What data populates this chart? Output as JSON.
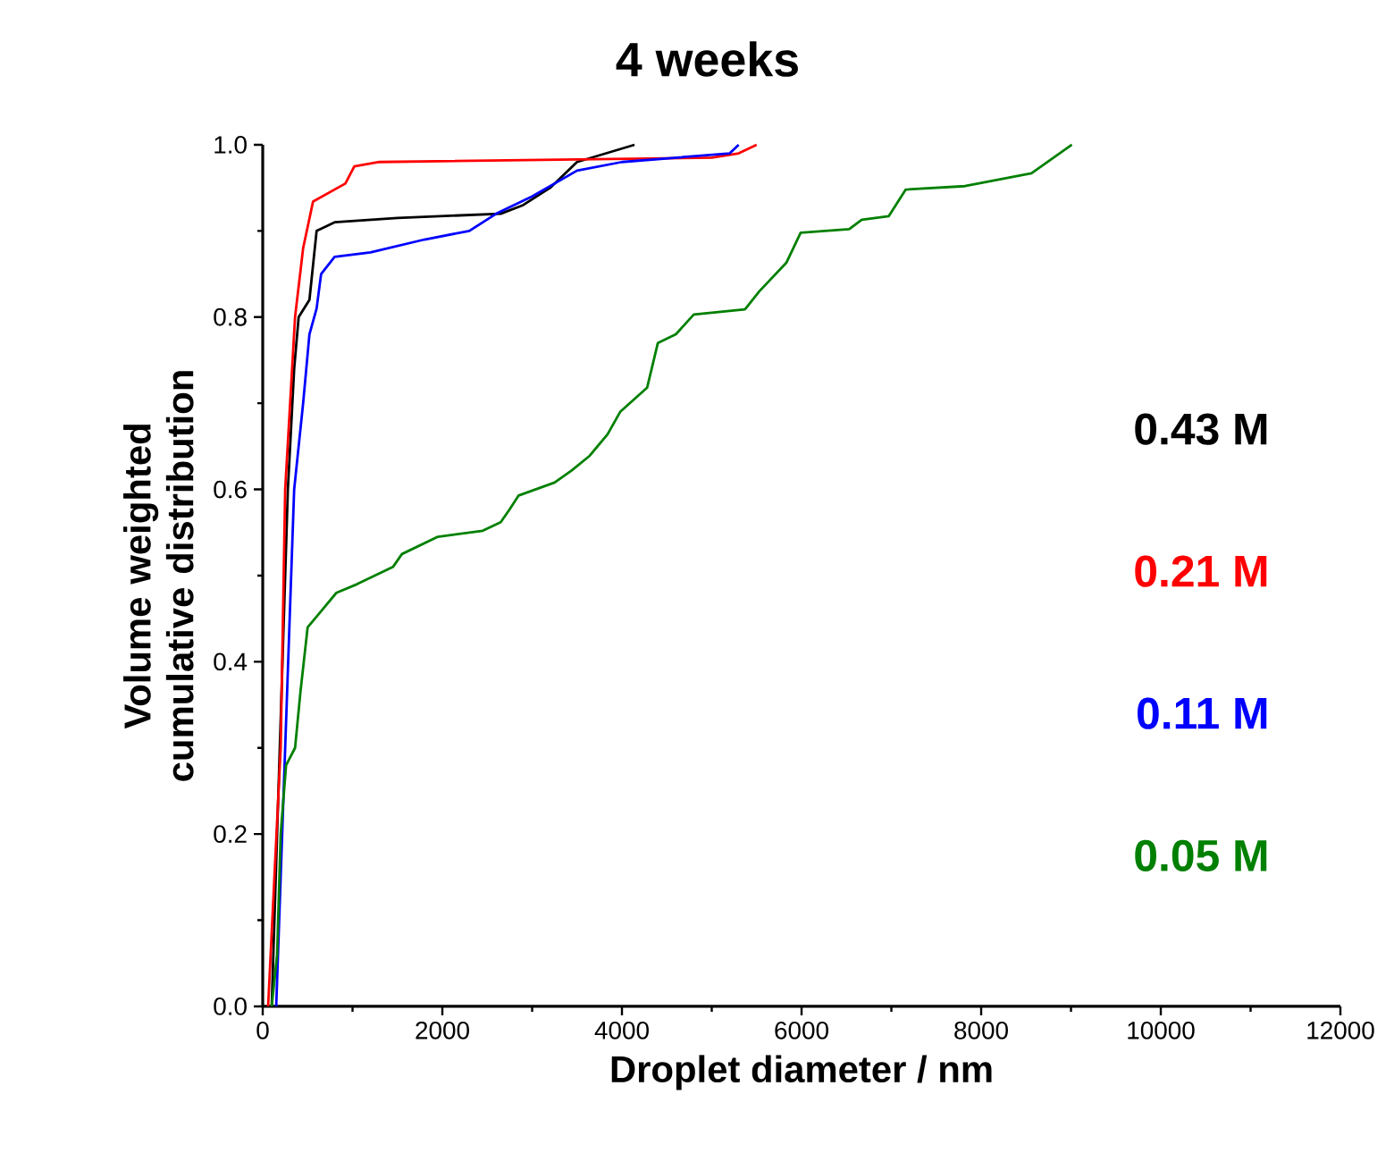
{
  "chart_data": {
    "type": "line",
    "title": "4 weeks",
    "xlabel": "Droplet diameter / nm",
    "ylabel": "Volume weighted cumulative distribution",
    "xlim": [
      0,
      12000
    ],
    "ylim": [
      0,
      1.0
    ],
    "xticks": [
      0,
      2000,
      4000,
      6000,
      8000,
      10000,
      12000
    ],
    "yticks": [
      {
        "value": 0,
        "label": "0.0"
      },
      {
        "value": 0.2,
        "label": "0.2"
      },
      {
        "value": 0.4,
        "label": "0.4"
      },
      {
        "value": 0.6,
        "label": "0.6"
      },
      {
        "value": 0.8,
        "label": "0.8"
      },
      {
        "value": 1.0,
        "label": "1.0"
      }
    ],
    "grid": false,
    "legend": "right",
    "marker": "none",
    "line_style": "solid",
    "series": [
      {
        "name": "0.43 M",
        "color": "#000000",
        "x": [
          100,
          280,
          350,
          400,
          520,
          560,
          600,
          800,
          1500,
          2650,
          2900,
          3200,
          3500,
          4140
        ],
        "values": [
          0,
          0.6,
          0.74,
          0.8,
          0.82,
          0.86,
          0.9,
          0.91,
          0.915,
          0.92,
          0.93,
          0.95,
          0.98,
          1.0
        ]
      },
      {
        "name": "0.21 M",
        "color": "#ff0000",
        "x": [
          60,
          200,
          250,
          360,
          450,
          560,
          920,
          1020,
          1300,
          5000,
          5300,
          5500
        ],
        "values": [
          0,
          0.3,
          0.6,
          0.8,
          0.88,
          0.934,
          0.955,
          0.975,
          0.98,
          0.985,
          0.99,
          1.0
        ]
      },
      {
        "name": "0.11 M",
        "color": "#0000ff",
        "x": [
          150,
          250,
          350,
          450,
          520,
          600,
          650,
          800,
          1200,
          1800,
          2300,
          2600,
          3000,
          3500,
          4000,
          5200,
          5300
        ],
        "values": [
          0,
          0.3,
          0.6,
          0.7,
          0.78,
          0.81,
          0.85,
          0.87,
          0.875,
          0.89,
          0.9,
          0.92,
          0.94,
          0.97,
          0.98,
          0.99,
          1.0
        ]
      },
      {
        "name": "0.05 M",
        "color": "#008000",
        "x": [
          100,
          160,
          200,
          260,
          360,
          420,
          500,
          660,
          820,
          1050,
          1450,
          1550,
          1950,
          2450,
          2650,
          2750,
          2850,
          3250,
          3440,
          3640,
          3840,
          3980,
          4280,
          4400,
          4600,
          4800,
          5370,
          5530,
          5830,
          5990,
          6530,
          6670,
          6970,
          7160,
          7820,
          8560,
          9010
        ],
        "values": [
          0,
          0.06,
          0.2,
          0.28,
          0.3,
          0.365,
          0.44,
          0.46,
          0.48,
          0.49,
          0.51,
          0.525,
          0.545,
          0.552,
          0.562,
          0.577,
          0.593,
          0.608,
          0.622,
          0.639,
          0.664,
          0.69,
          0.718,
          0.77,
          0.78,
          0.803,
          0.809,
          0.83,
          0.863,
          0.898,
          0.902,
          0.913,
          0.917,
          0.948,
          0.952,
          0.967,
          1.0
        ]
      }
    ]
  }
}
